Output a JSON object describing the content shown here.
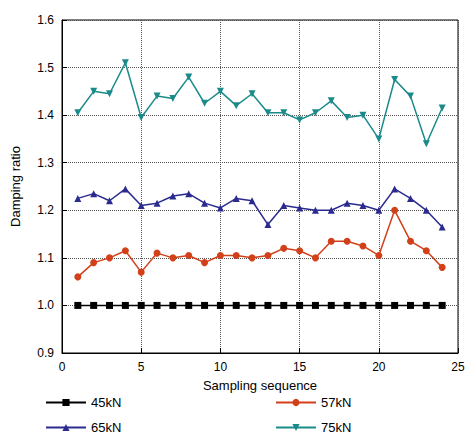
{
  "chart_data": {
    "type": "line",
    "x_label": "Sampling sequence",
    "y_label": "Damping ratio",
    "x": [
      1,
      2,
      3,
      4,
      5,
      6,
      7,
      8,
      9,
      10,
      11,
      12,
      13,
      14,
      15,
      16,
      17,
      18,
      19,
      20,
      21,
      22,
      23,
      24
    ],
    "xlim": [
      0,
      25
    ],
    "xticks": [
      0,
      5,
      10,
      15,
      20,
      25
    ],
    "ylim": [
      0.9,
      1.6
    ],
    "yticks": [
      0.9,
      {
        "value": 1,
        "label": "1.0"
      },
      1.1,
      1.2,
      1.3,
      1.4,
      1.5,
      1.6
    ],
    "grid": true,
    "legend": "bottom",
    "series": [
      {
        "name": "45kN",
        "color": "#000000",
        "marker": "square",
        "values": [
          1.0,
          1.0,
          1.0,
          1.0,
          1.0,
          1.0,
          1.0,
          1.0,
          1.0,
          1.0,
          1.0,
          1.0,
          1.0,
          1.0,
          1.0,
          1.0,
          1.0,
          1.0,
          1.0,
          1.0,
          1.0,
          1.0,
          1.0,
          1.0
        ]
      },
      {
        "name": "57kN",
        "color": "#d2401a",
        "marker": "circle",
        "values": [
          1.06,
          1.09,
          1.1,
          1.115,
          1.07,
          1.11,
          1.1,
          1.105,
          1.09,
          1.105,
          1.105,
          1.1,
          1.105,
          1.12,
          1.115,
          1.1,
          1.135,
          1.135,
          1.125,
          1.105,
          1.2,
          1.135,
          1.115,
          1.08
        ]
      },
      {
        "name": "65kN",
        "color": "#2b2b8f",
        "marker": "triangle",
        "values": [
          1.225,
          1.235,
          1.22,
          1.245,
          1.21,
          1.215,
          1.23,
          1.235,
          1.215,
          1.205,
          1.225,
          1.22,
          1.17,
          1.21,
          1.205,
          1.2,
          1.2,
          1.215,
          1.21,
          1.2,
          1.245,
          1.225,
          1.2,
          1.165
        ]
      },
      {
        "name": "75kN",
        "color": "#1a8a8a",
        "marker": "triangle-down",
        "values": [
          1.405,
          1.45,
          1.445,
          1.51,
          1.395,
          1.44,
          1.435,
          1.48,
          1.425,
          1.45,
          1.42,
          1.445,
          1.405,
          1.405,
          1.39,
          1.405,
          1.43,
          1.395,
          1.4,
          1.35,
          1.475,
          1.44,
          1.34,
          1.415
        ]
      }
    ]
  }
}
